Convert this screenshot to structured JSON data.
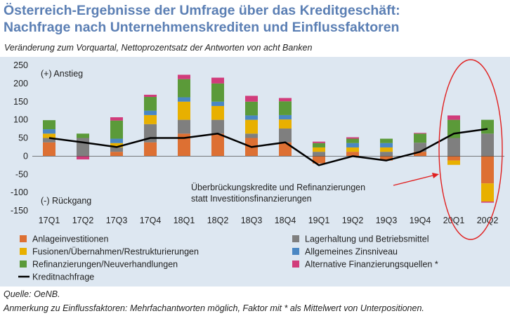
{
  "header": {
    "title_line1": "Österreich-Ergebnisse der Umfrage über das Kreditgeschäft:",
    "title_line2": "Nachfrage nach Unternehmenskrediten und Einflussfaktoren",
    "subtitle": "Veränderung zum Vorquartal, Nettoprozentsatz der Antworten von acht Banken"
  },
  "footer": {
    "source": "Quelle: OeNB.",
    "note": "Anmerkung zu Einflussfaktoren: Mehrfachantworten möglich, Faktor mit * als Mittelwert von Unterpositionen."
  },
  "chart_data": {
    "type": "bar",
    "stacked": true,
    "categories": [
      "17Q1",
      "17Q2",
      "17Q3",
      "17Q4",
      "18Q1",
      "18Q2",
      "18Q3",
      "18Q4",
      "19Q1",
      "19Q2",
      "19Q3",
      "19Q4",
      "20Q1",
      "20Q2"
    ],
    "ylim": [
      -150,
      250
    ],
    "yticks": [
      250,
      200,
      150,
      100,
      50,
      0,
      -50,
      -100,
      -150
    ],
    "series": [
      {
        "name": "Anlageinvestitionen",
        "color": "#dd7033",
        "values": [
          38,
          0,
          12,
          38,
          62,
          62,
          50,
          38,
          -20,
          12,
          -12,
          12,
          -12,
          -75
        ]
      },
      {
        "name": "Lagerhaltung und Betriebsmittel",
        "color": "#7f7f7f",
        "values": [
          12,
          50,
          12,
          50,
          38,
          38,
          12,
          38,
          12,
          0,
          12,
          25,
          50,
          62
        ]
      },
      {
        "name": "Fusionen/Übernahmen/Restrukturierungen",
        "color": "#e8b000",
        "values": [
          12,
          0,
          12,
          25,
          50,
          38,
          38,
          25,
          12,
          12,
          12,
          0,
          -12,
          -50
        ]
      },
      {
        "name": "Allgemeines Zinsniveau",
        "color": "#4a87c3",
        "values": [
          12,
          0,
          12,
          12,
          12,
          12,
          12,
          12,
          0,
          12,
          12,
          0,
          0,
          0
        ]
      },
      {
        "name": "Refinanzierungen/Neuverhandlungen",
        "color": "#5b9a39",
        "values": [
          25,
          12,
          50,
          38,
          50,
          50,
          38,
          38,
          12,
          12,
          12,
          25,
          50,
          38
        ]
      },
      {
        "name": "Alternative Finanzierungsquellen *",
        "color": "#d13c7b",
        "values": [
          0,
          -9,
          9,
          6,
          12,
          16,
          16,
          9,
          4,
          4,
          0,
          2,
          12,
          -3
        ]
      }
    ],
    "line": {
      "name": "Kreditnachfrage",
      "color": "#000000",
      "values": [
        50,
        38,
        25,
        50,
        50,
        62,
        25,
        38,
        -25,
        0,
        -12,
        12,
        62,
        75
      ]
    },
    "annotations": {
      "top_left": "(+) Anstieg",
      "bottom_left": "(-) Rückgang",
      "callout_line1": "Überbrückungskredite und Refinanzierungen",
      "callout_line2": "statt Investitionsfinanzierungen",
      "callout_color": "#e02020"
    }
  }
}
